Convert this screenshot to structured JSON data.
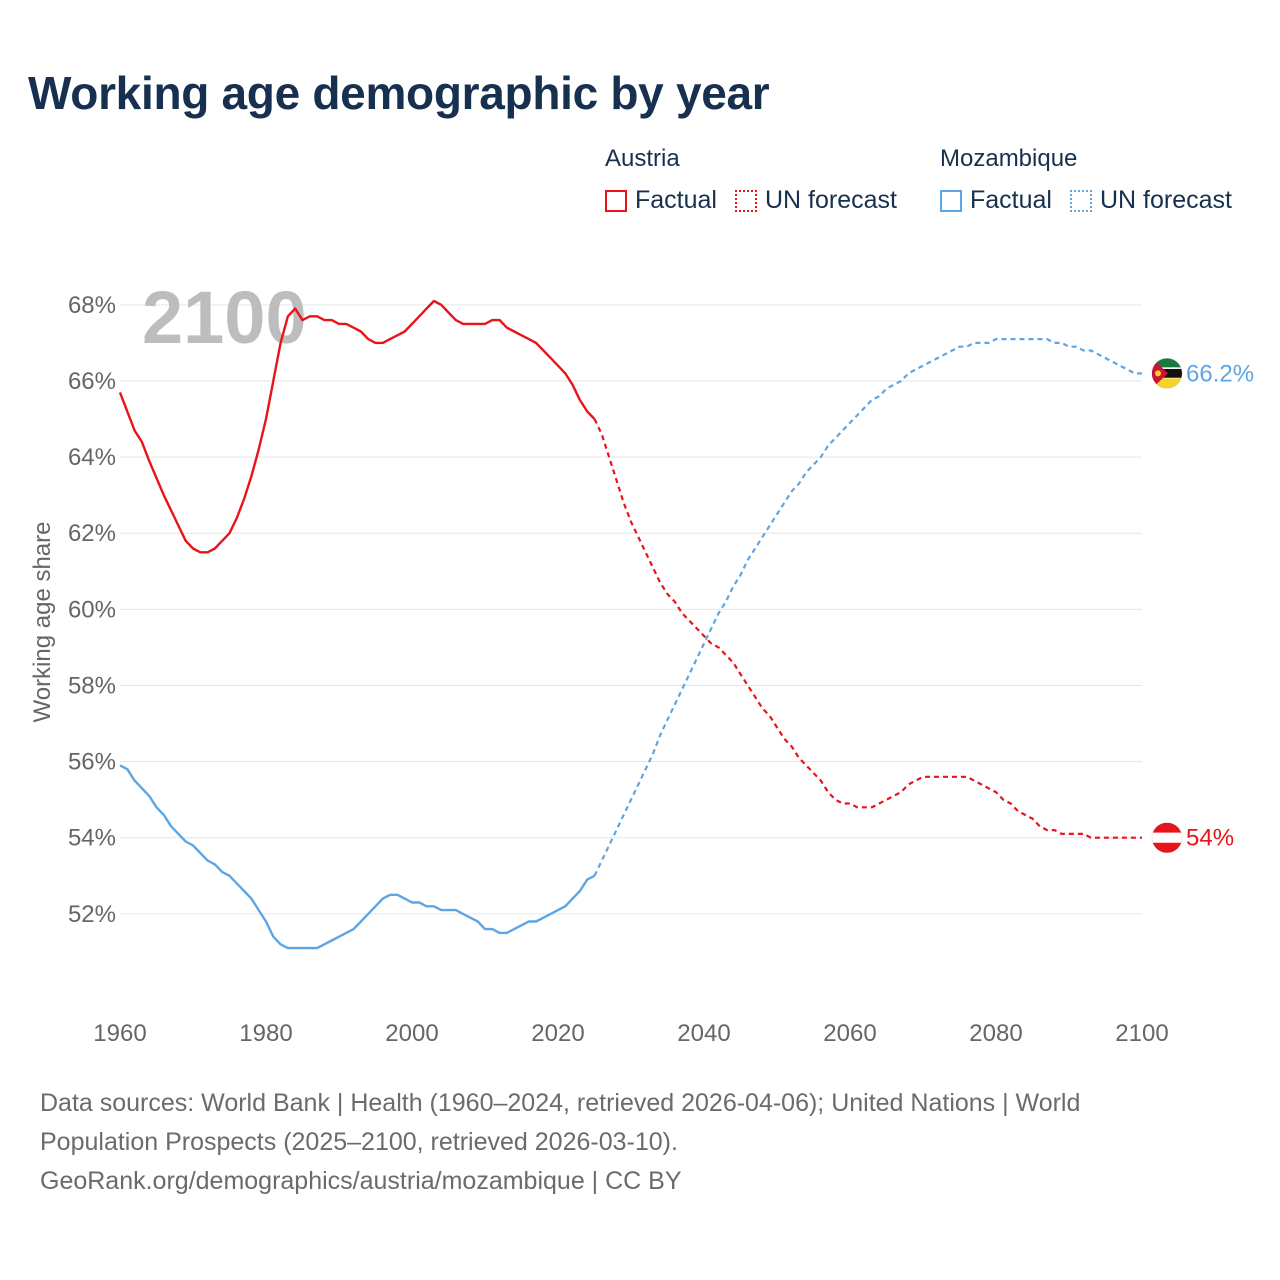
{
  "title": "Working age demographic by year",
  "legend": {
    "groups": [
      {
        "name": "Austria",
        "factual_label": "Factual",
        "forecast_label": "UN forecast",
        "color": "#e8141b"
      },
      {
        "name": "Mozambique",
        "factual_label": "Factual",
        "forecast_label": "UN forecast",
        "color": "#5ea5e4"
      }
    ]
  },
  "year_overlay": "2100",
  "sources": {
    "line1": "Data sources: World Bank | Health (1960–2024, retrieved 2026-04-06); United Nations | World",
    "line2": "Population Prospects (2025–2100, retrieved 2026-03-10).",
    "line3": "GeoRank.org/demographics/austria/mozambique | CC BY"
  },
  "colors": {
    "austria": "#e8141b",
    "mozambique": "#5ea5e4",
    "text": "#17304f",
    "axis_text": "#666666",
    "grid": "#e6e6e6",
    "overlay": "#bdbdbd"
  },
  "chart_data": {
    "type": "line",
    "title": "Working age demographic by year",
    "xlabel": "",
    "ylabel": "Working age share",
    "xlim": [
      1960,
      2100
    ],
    "ylim": [
      50,
      68.6
    ],
    "x_ticks": [
      1960,
      1980,
      2000,
      2020,
      2040,
      2060,
      2080,
      2100
    ],
    "y_ticks": [
      52,
      54,
      56,
      58,
      60,
      62,
      64,
      66,
      68
    ],
    "y_tick_labels": [
      "52%",
      "54%",
      "56%",
      "58%",
      "60%",
      "62%",
      "64%",
      "66%",
      "68%"
    ],
    "forecast_start": 2025,
    "series": [
      {
        "name": "Austria",
        "end_label": "54%",
        "points": [
          [
            1960,
            65.7
          ],
          [
            1962,
            64.7
          ],
          [
            1963,
            64.4
          ],
          [
            1964,
            63.9
          ],
          [
            1966,
            63.0
          ],
          [
            1968,
            62.2
          ],
          [
            1969,
            61.8
          ],
          [
            1970,
            61.6
          ],
          [
            1971,
            61.5
          ],
          [
            1972,
            61.5
          ],
          [
            1973,
            61.6
          ],
          [
            1974,
            61.8
          ],
          [
            1975,
            62.0
          ],
          [
            1976,
            62.4
          ],
          [
            1977,
            62.9
          ],
          [
            1978,
            63.5
          ],
          [
            1979,
            64.2
          ],
          [
            1980,
            65.0
          ],
          [
            1981,
            66.0
          ],
          [
            1982,
            67.0
          ],
          [
            1983,
            67.7
          ],
          [
            1984,
            67.9
          ],
          [
            1985,
            67.6
          ],
          [
            1986,
            67.7
          ],
          [
            1987,
            67.7
          ],
          [
            1988,
            67.6
          ],
          [
            1989,
            67.6
          ],
          [
            1990,
            67.5
          ],
          [
            1991,
            67.5
          ],
          [
            1992,
            67.4
          ],
          [
            1993,
            67.3
          ],
          [
            1994,
            67.1
          ],
          [
            1995,
            67.0
          ],
          [
            1996,
            67.0
          ],
          [
            1997,
            67.1
          ],
          [
            1998,
            67.2
          ],
          [
            1999,
            67.3
          ],
          [
            2000,
            67.5
          ],
          [
            2001,
            67.7
          ],
          [
            2002,
            67.9
          ],
          [
            2003,
            68.1
          ],
          [
            2004,
            68.0
          ],
          [
            2005,
            67.8
          ],
          [
            2006,
            67.6
          ],
          [
            2007,
            67.5
          ],
          [
            2008,
            67.5
          ],
          [
            2009,
            67.5
          ],
          [
            2010,
            67.5
          ],
          [
            2011,
            67.6
          ],
          [
            2012,
            67.6
          ],
          [
            2013,
            67.4
          ],
          [
            2014,
            67.3
          ],
          [
            2015,
            67.2
          ],
          [
            2016,
            67.1
          ],
          [
            2017,
            67.0
          ],
          [
            2018,
            66.8
          ],
          [
            2019,
            66.6
          ],
          [
            2020,
            66.4
          ],
          [
            2021,
            66.2
          ],
          [
            2022,
            65.9
          ],
          [
            2023,
            65.5
          ],
          [
            2024,
            65.2
          ],
          [
            2025,
            65.0
          ],
          [
            2026,
            64.6
          ],
          [
            2027,
            64.0
          ],
          [
            2028,
            63.4
          ],
          [
            2029,
            62.8
          ],
          [
            2030,
            62.3
          ],
          [
            2031,
            61.9
          ],
          [
            2032,
            61.5
          ],
          [
            2033,
            61.1
          ],
          [
            2034,
            60.7
          ],
          [
            2035,
            60.4
          ],
          [
            2036,
            60.2
          ],
          [
            2037,
            59.9
          ],
          [
            2038,
            59.7
          ],
          [
            2039,
            59.5
          ],
          [
            2040,
            59.3
          ],
          [
            2041,
            59.1
          ],
          [
            2042,
            59.0
          ],
          [
            2043,
            58.8
          ],
          [
            2044,
            58.6
          ],
          [
            2045,
            58.3
          ],
          [
            2046,
            58.0
          ],
          [
            2047,
            57.7
          ],
          [
            2048,
            57.4
          ],
          [
            2049,
            57.2
          ],
          [
            2050,
            56.9
          ],
          [
            2051,
            56.6
          ],
          [
            2052,
            56.4
          ],
          [
            2053,
            56.1
          ],
          [
            2054,
            55.9
          ],
          [
            2055,
            55.7
          ],
          [
            2056,
            55.5
          ],
          [
            2057,
            55.2
          ],
          [
            2058,
            55.0
          ],
          [
            2059,
            54.9
          ],
          [
            2060,
            54.9
          ],
          [
            2061,
            54.8
          ],
          [
            2062,
            54.8
          ],
          [
            2063,
            54.8
          ],
          [
            2064,
            54.9
          ],
          [
            2065,
            55.0
          ],
          [
            2066,
            55.1
          ],
          [
            2067,
            55.2
          ],
          [
            2068,
            55.4
          ],
          [
            2069,
            55.5
          ],
          [
            2070,
            55.6
          ],
          [
            2071,
            55.6
          ],
          [
            2072,
            55.6
          ],
          [
            2073,
            55.6
          ],
          [
            2074,
            55.6
          ],
          [
            2075,
            55.6
          ],
          [
            2076,
            55.6
          ],
          [
            2077,
            55.5
          ],
          [
            2078,
            55.4
          ],
          [
            2079,
            55.3
          ],
          [
            2080,
            55.2
          ],
          [
            2081,
            55.0
          ],
          [
            2082,
            54.9
          ],
          [
            2083,
            54.7
          ],
          [
            2084,
            54.6
          ],
          [
            2085,
            54.5
          ],
          [
            2086,
            54.3
          ],
          [
            2087,
            54.2
          ],
          [
            2088,
            54.2
          ],
          [
            2089,
            54.1
          ],
          [
            2090,
            54.1
          ],
          [
            2091,
            54.1
          ],
          [
            2092,
            54.1
          ],
          [
            2093,
            54.0
          ],
          [
            2094,
            54.0
          ],
          [
            2095,
            54.0
          ],
          [
            2096,
            54.0
          ],
          [
            2097,
            54.0
          ],
          [
            2098,
            54.0
          ],
          [
            2099,
            54.0
          ],
          [
            2100,
            54.0
          ]
        ]
      },
      {
        "name": "Mozambique",
        "end_label": "66.2%",
        "points": [
          [
            1960,
            55.9
          ],
          [
            1961,
            55.8
          ],
          [
            1962,
            55.5
          ],
          [
            1964,
            55.1
          ],
          [
            1965,
            54.8
          ],
          [
            1966,
            54.6
          ],
          [
            1967,
            54.3
          ],
          [
            1968,
            54.1
          ],
          [
            1969,
            53.9
          ],
          [
            1970,
            53.8
          ],
          [
            1971,
            53.6
          ],
          [
            1972,
            53.4
          ],
          [
            1973,
            53.3
          ],
          [
            1974,
            53.1
          ],
          [
            1975,
            53.0
          ],
          [
            1976,
            52.8
          ],
          [
            1977,
            52.6
          ],
          [
            1978,
            52.4
          ],
          [
            1979,
            52.1
          ],
          [
            1980,
            51.8
          ],
          [
            1981,
            51.4
          ],
          [
            1982,
            51.2
          ],
          [
            1983,
            51.1
          ],
          [
            1984,
            51.1
          ],
          [
            1985,
            51.1
          ],
          [
            1986,
            51.1
          ],
          [
            1987,
            51.1
          ],
          [
            1988,
            51.2
          ],
          [
            1989,
            51.3
          ],
          [
            1990,
            51.4
          ],
          [
            1991,
            51.5
          ],
          [
            1992,
            51.6
          ],
          [
            1993,
            51.8
          ],
          [
            1994,
            52.0
          ],
          [
            1995,
            52.2
          ],
          [
            1996,
            52.4
          ],
          [
            1997,
            52.5
          ],
          [
            1998,
            52.5
          ],
          [
            1999,
            52.4
          ],
          [
            2000,
            52.3
          ],
          [
            2001,
            52.3
          ],
          [
            2002,
            52.2
          ],
          [
            2003,
            52.2
          ],
          [
            2004,
            52.1
          ],
          [
            2005,
            52.1
          ],
          [
            2006,
            52.1
          ],
          [
            2007,
            52.0
          ],
          [
            2008,
            51.9
          ],
          [
            2009,
            51.8
          ],
          [
            2010,
            51.6
          ],
          [
            2011,
            51.6
          ],
          [
            2012,
            51.5
          ],
          [
            2013,
            51.5
          ],
          [
            2014,
            51.6
          ],
          [
            2015,
            51.7
          ],
          [
            2016,
            51.8
          ],
          [
            2017,
            51.8
          ],
          [
            2018,
            51.9
          ],
          [
            2019,
            52.0
          ],
          [
            2020,
            52.1
          ],
          [
            2021,
            52.2
          ],
          [
            2022,
            52.4
          ],
          [
            2023,
            52.6
          ],
          [
            2024,
            52.9
          ],
          [
            2025,
            53.0
          ],
          [
            2026,
            53.4
          ],
          [
            2027,
            53.8
          ],
          [
            2028,
            54.2
          ],
          [
            2029,
            54.6
          ],
          [
            2030,
            55.0
          ],
          [
            2031,
            55.4
          ],
          [
            2032,
            55.8
          ],
          [
            2033,
            56.2
          ],
          [
            2034,
            56.7
          ],
          [
            2035,
            57.1
          ],
          [
            2036,
            57.5
          ],
          [
            2037,
            57.9
          ],
          [
            2038,
            58.3
          ],
          [
            2039,
            58.7
          ],
          [
            2040,
            59.1
          ],
          [
            2041,
            59.5
          ],
          [
            2042,
            59.9
          ],
          [
            2043,
            60.2
          ],
          [
            2044,
            60.6
          ],
          [
            2045,
            60.9
          ],
          [
            2046,
            61.3
          ],
          [
            2047,
            61.6
          ],
          [
            2048,
            61.9
          ],
          [
            2049,
            62.2
          ],
          [
            2050,
            62.5
          ],
          [
            2051,
            62.8
          ],
          [
            2052,
            63.1
          ],
          [
            2053,
            63.3
          ],
          [
            2054,
            63.6
          ],
          [
            2055,
            63.8
          ],
          [
            2056,
            64.0
          ],
          [
            2057,
            64.3
          ],
          [
            2058,
            64.5
          ],
          [
            2059,
            64.7
          ],
          [
            2060,
            64.9
          ],
          [
            2061,
            65.1
          ],
          [
            2062,
            65.3
          ],
          [
            2063,
            65.5
          ],
          [
            2064,
            65.6
          ],
          [
            2065,
            65.8
          ],
          [
            2066,
            65.9
          ],
          [
            2067,
            66.0
          ],
          [
            2068,
            66.2
          ],
          [
            2069,
            66.3
          ],
          [
            2070,
            66.4
          ],
          [
            2071,
            66.5
          ],
          [
            2072,
            66.6
          ],
          [
            2073,
            66.7
          ],
          [
            2074,
            66.8
          ],
          [
            2075,
            66.9
          ],
          [
            2076,
            66.9
          ],
          [
            2077,
            67.0
          ],
          [
            2078,
            67.0
          ],
          [
            2079,
            67.0
          ],
          [
            2080,
            67.1
          ],
          [
            2081,
            67.1
          ],
          [
            2082,
            67.1
          ],
          [
            2083,
            67.1
          ],
          [
            2084,
            67.1
          ],
          [
            2085,
            67.1
          ],
          [
            2086,
            67.1
          ],
          [
            2087,
            67.1
          ],
          [
            2088,
            67.0
          ],
          [
            2089,
            67.0
          ],
          [
            2090,
            66.9
          ],
          [
            2091,
            66.9
          ],
          [
            2092,
            66.8
          ],
          [
            2093,
            66.8
          ],
          [
            2094,
            66.7
          ],
          [
            2095,
            66.6
          ],
          [
            2096,
            66.5
          ],
          [
            2097,
            66.4
          ],
          [
            2098,
            66.3
          ],
          [
            2099,
            66.2
          ],
          [
            2100,
            66.2
          ]
        ]
      }
    ]
  }
}
